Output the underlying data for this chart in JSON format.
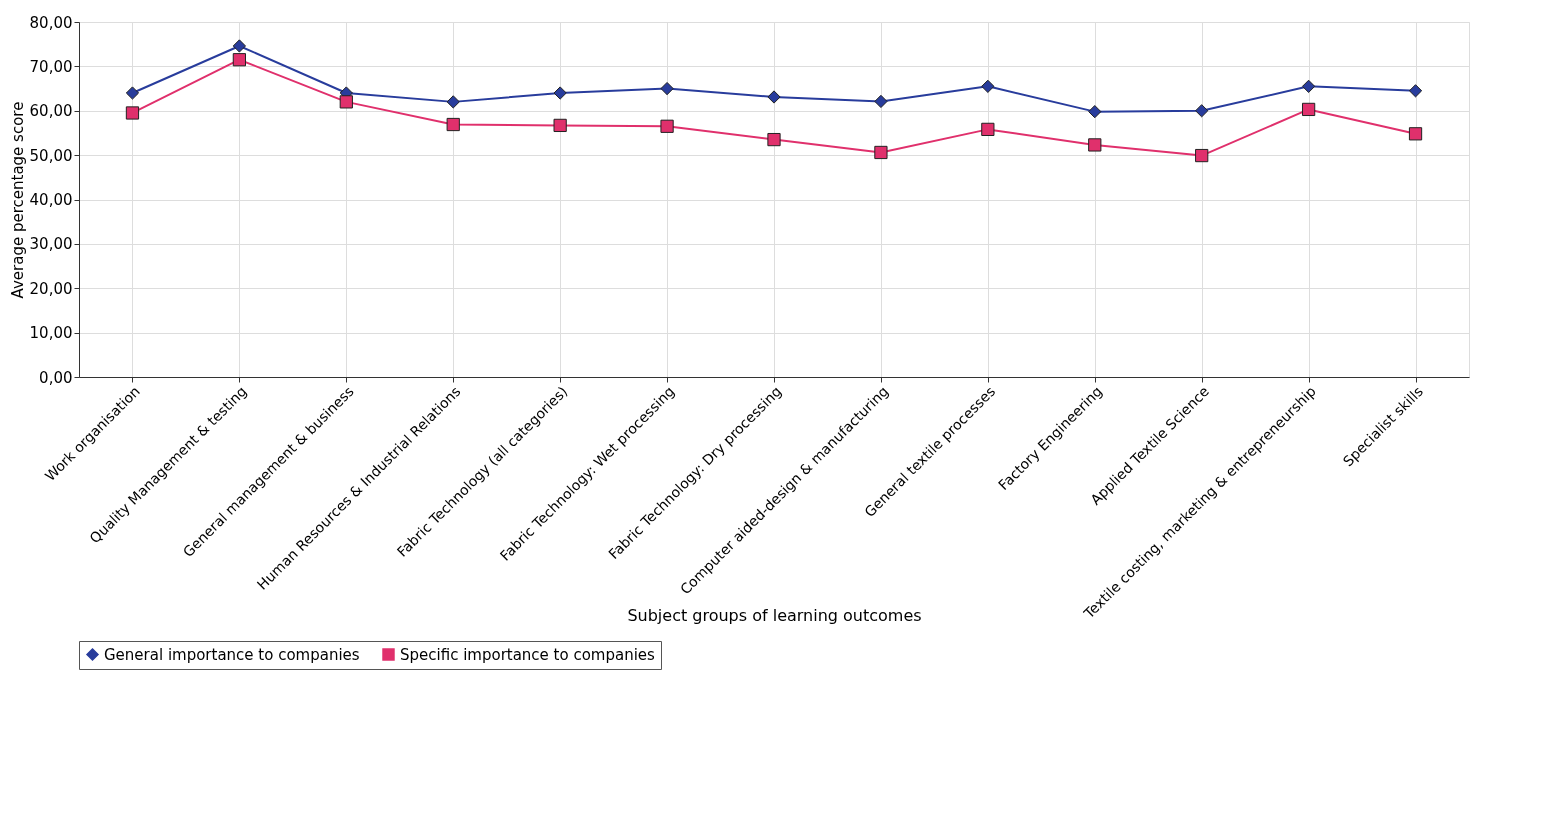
{
  "chart_data": {
    "type": "line",
    "xlabel": "Subject groups of learning outcomes",
    "ylabel": "Average percentage score",
    "categories": [
      "Work organisation",
      "Quality Management & testing",
      "General management & business",
      "Human Resources & Industrial Relations",
      "Fabric Technology (all categories)",
      "Fabric Technology:  Wet processing",
      "Fabric Technology:  Dry processing",
      "Computer aided-design & manufacturing",
      "General textile processes",
      "Factory Engineering",
      "Applied Textile Science",
      "Textile costing, marketing & entrepreneurship",
      "Specialist skills"
    ],
    "series": [
      {
        "name": "General importance to companies",
        "color": "#283c9c",
        "marker": "diamond",
        "values": [
          64.0,
          74.6,
          64.0,
          62.0,
          64.0,
          65.0,
          63.1,
          62.1,
          65.5,
          59.8,
          60.0,
          65.5,
          64.5
        ]
      },
      {
        "name": "Specific importance to companies",
        "color": "#e0306c",
        "marker": "square",
        "values": [
          59.5,
          71.5,
          62.0,
          56.9,
          56.7,
          56.5,
          53.5,
          50.6,
          55.8,
          52.3,
          49.9,
          60.3,
          54.8
        ]
      }
    ],
    "ylim": [
      0,
      80
    ],
    "yticks": [
      {
        "value": 0,
        "label": "0,00"
      },
      {
        "value": 10,
        "label": "10,00"
      },
      {
        "value": 20,
        "label": "20,00"
      },
      {
        "value": 30,
        "label": "30,00"
      },
      {
        "value": 40,
        "label": "40,00"
      },
      {
        "value": 50,
        "label": "50,00"
      },
      {
        "value": 60,
        "label": "60,00"
      },
      {
        "value": 70,
        "label": "70,00"
      },
      {
        "value": 80,
        "label": "80,00"
      }
    ],
    "grid": true,
    "legend": "bottom",
    "line_style": "solid"
  }
}
